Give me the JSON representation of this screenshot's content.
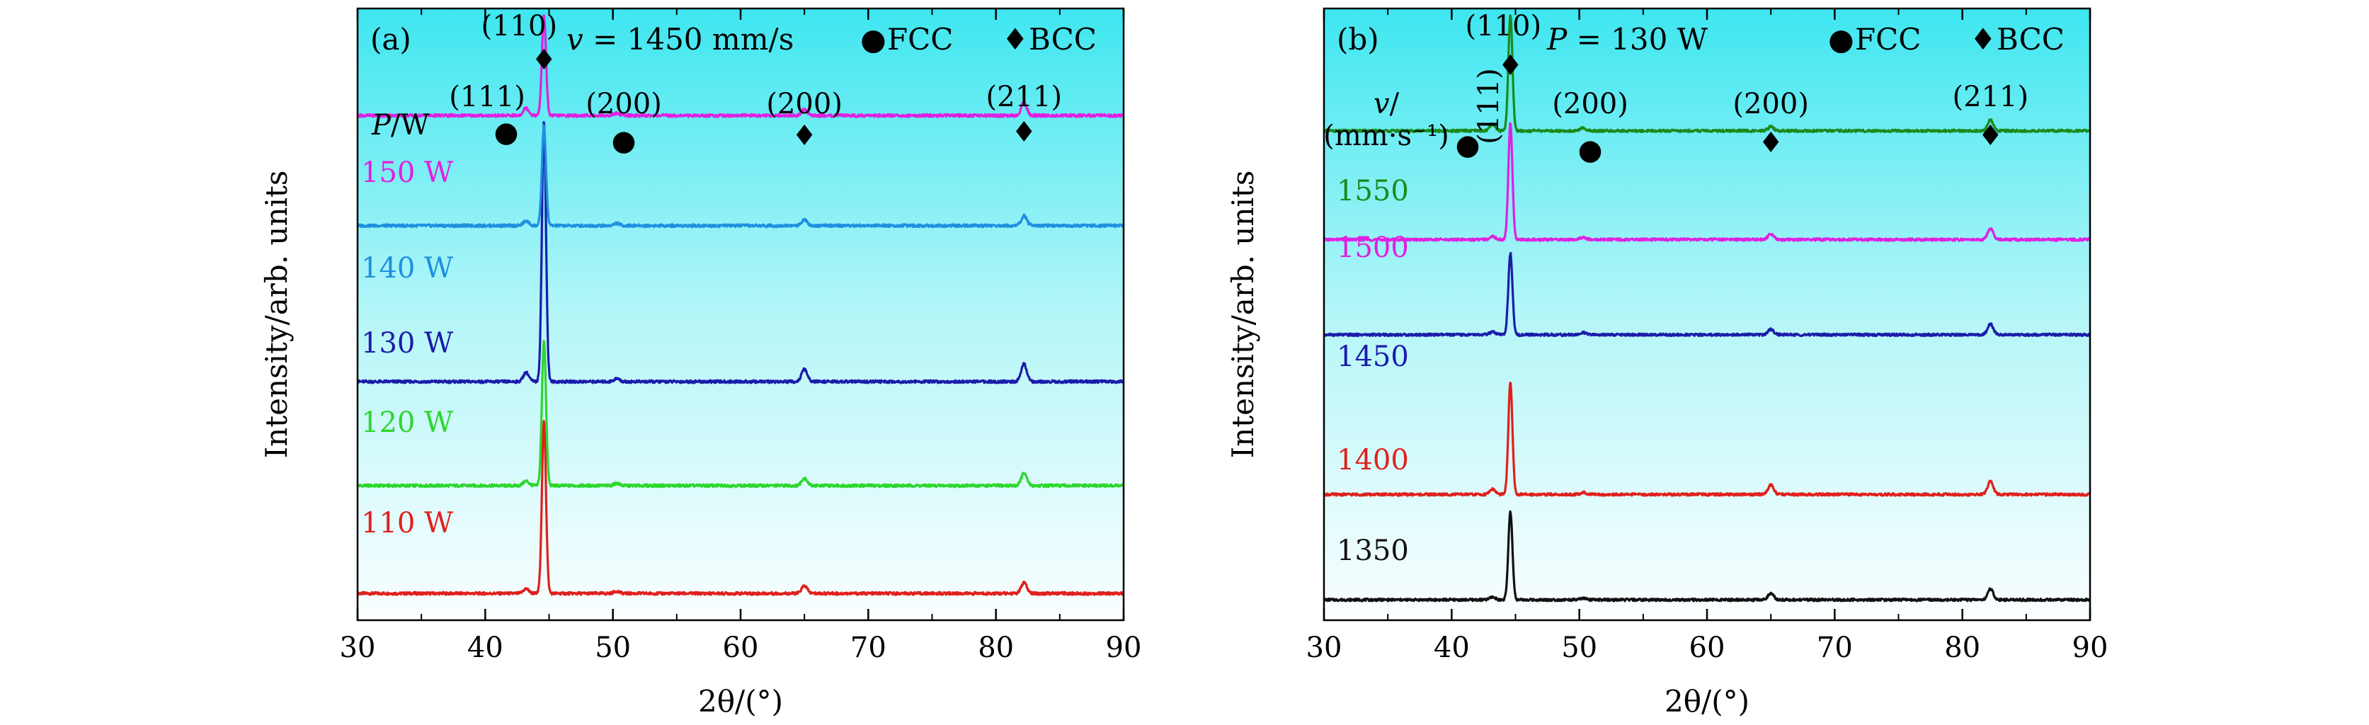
{
  "chart_data": [
    {
      "type": "line",
      "panel_label": "(a)",
      "xlabel": "2θ/(°)",
      "ylabel": "Intensity/arb. units",
      "xlim": [
        30,
        90
      ],
      "xticks": [
        30,
        40,
        50,
        60,
        70,
        80,
        90
      ],
      "grid": false,
      "background": "cyan-gradient",
      "condition": {
        "var": "v",
        "value": "1450",
        "unit": "mm/s"
      },
      "legend": [
        {
          "symbol": "●",
          "label": "FCC"
        },
        {
          "symbol": "♦",
          "label": "BCC"
        }
      ],
      "series_heading": "P/W",
      "peaks": [
        {
          "label": "(111)",
          "two_theta": 43.2,
          "phase": "FCC"
        },
        {
          "label": "(110)",
          "two_theta": 44.6,
          "phase": "BCC"
        },
        {
          "label": "(200)",
          "two_theta": 50.3,
          "phase": "FCC"
        },
        {
          "label": "(200)",
          "two_theta": 65.0,
          "phase": "BCC"
        },
        {
          "label": "(211)",
          "two_theta": 82.2,
          "phase": "BCC"
        }
      ],
      "series": [
        {
          "name": "110 W",
          "color": "#e0201c",
          "baseline": 0.35,
          "peaks": [
            [
              43.2,
              0.06
            ],
            [
              44.6,
              2.25
            ],
            [
              50.3,
              0.03
            ],
            [
              65.0,
              0.1
            ],
            [
              82.2,
              0.14
            ]
          ]
        },
        {
          "name": "120 W",
          "color": "#2ed62e",
          "baseline": 1.76,
          "peaks": [
            [
              43.2,
              0.06
            ],
            [
              44.6,
              1.9
            ],
            [
              50.3,
              0.03
            ],
            [
              65.0,
              0.1
            ],
            [
              82.2,
              0.16
            ]
          ]
        },
        {
          "name": "130 W",
          "color": "#1c1caa",
          "baseline": 3.12,
          "peaks": [
            [
              43.2,
              0.12
            ],
            [
              44.6,
              3.4
            ],
            [
              50.3,
              0.04
            ],
            [
              65.0,
              0.16
            ],
            [
              82.2,
              0.23
            ]
          ]
        },
        {
          "name": "140 W",
          "color": "#1f8fe0",
          "baseline": 5.16,
          "peaks": [
            [
              43.2,
              0.06
            ],
            [
              44.6,
              1.3
            ],
            [
              50.3,
              0.03
            ],
            [
              65.0,
              0.08
            ],
            [
              82.2,
              0.13
            ]
          ]
        },
        {
          "name": "150 W",
          "color": "#e020e0",
          "baseline": 6.6,
          "peaks": [
            [
              43.2,
              0.1
            ],
            [
              44.6,
              1.3
            ],
            [
              50.3,
              0.03
            ],
            [
              65.0,
              0.08
            ],
            [
              82.2,
              0.17
            ]
          ]
        }
      ]
    },
    {
      "type": "line",
      "panel_label": "(b)",
      "xlabel": "2θ/(°)",
      "ylabel": "Intensity/arb. units",
      "xlim": [
        30,
        90
      ],
      "xticks": [
        30,
        40,
        50,
        60,
        70,
        80,
        90
      ],
      "grid": false,
      "background": "cyan-gradient",
      "condition": {
        "var": "P",
        "value": "130",
        "unit": "W"
      },
      "legend": [
        {
          "symbol": "●",
          "label": "FCC"
        },
        {
          "symbol": "♦",
          "label": "BCC"
        }
      ],
      "series_heading": "v/",
      "series_heading_unit": "(mm·s⁻¹)",
      "peaks": [
        {
          "label": "(111)",
          "two_theta": 43.2,
          "phase": "FCC"
        },
        {
          "label": "(110)",
          "two_theta": 44.6,
          "phase": "BCC"
        },
        {
          "label": "(200)",
          "two_theta": 50.3,
          "phase": "FCC"
        },
        {
          "label": "(200)",
          "two_theta": 65.0,
          "phase": "BCC"
        },
        {
          "label": "(211)",
          "two_theta": 82.2,
          "phase": "BCC"
        }
      ],
      "series": [
        {
          "name": "1350",
          "color": "#111111",
          "baseline": 0.3,
          "peaks": [
            [
              43.2,
              0.04
            ],
            [
              44.6,
              1.3
            ],
            [
              50.3,
              0.02
            ],
            [
              65.0,
              0.1
            ],
            [
              82.2,
              0.16
            ]
          ]
        },
        {
          "name": "1400",
          "color": "#e0201c",
          "baseline": 1.85,
          "peaks": [
            [
              43.2,
              0.08
            ],
            [
              44.6,
              1.65
            ],
            [
              50.3,
              0.03
            ],
            [
              65.0,
              0.14
            ],
            [
              82.2,
              0.2
            ]
          ]
        },
        {
          "name": "1450",
          "color": "#1c1caa",
          "baseline": 4.2,
          "peaks": [
            [
              43.2,
              0.04
            ],
            [
              44.6,
              1.2
            ],
            [
              50.3,
              0.03
            ],
            [
              65.0,
              0.08
            ],
            [
              82.2,
              0.16
            ]
          ]
        },
        {
          "name": "1500",
          "color": "#e020e0",
          "baseline": 5.6,
          "peaks": [
            [
              43.2,
              0.05
            ],
            [
              44.6,
              1.7
            ],
            [
              50.3,
              0.03
            ],
            [
              65.0,
              0.08
            ],
            [
              82.2,
              0.16
            ]
          ]
        },
        {
          "name": "1550",
          "color": "#1a8a1a",
          "baseline": 7.2,
          "peaks": [
            [
              43.2,
              0.1
            ],
            [
              44.6,
              1.7
            ],
            [
              50.3,
              0.04
            ],
            [
              65.0,
              0.06
            ],
            [
              82.2,
              0.16
            ]
          ]
        }
      ]
    }
  ]
}
